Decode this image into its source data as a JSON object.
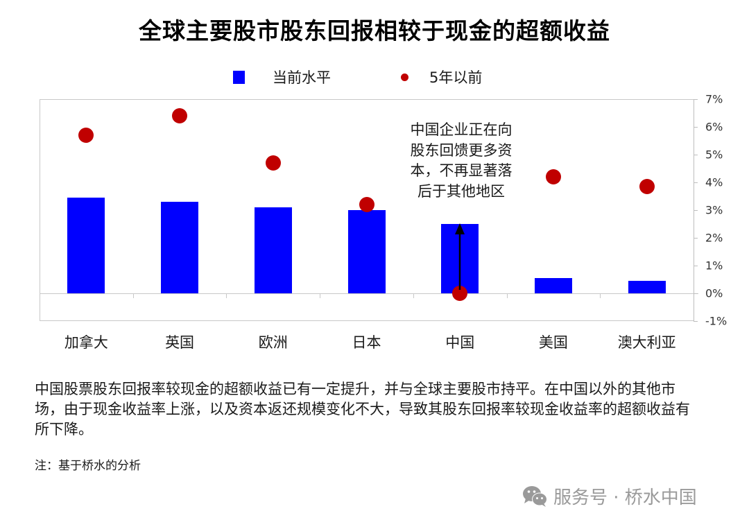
{
  "title": "全球主要股市股东回报相较于现金的超额收益",
  "legend": {
    "current": "当前水平",
    "five_years_ago": "5年以前"
  },
  "colors": {
    "bar": "#0000ff",
    "dot": "#c00000",
    "grid": "#c8c8c8"
  },
  "annotation": {
    "lines": [
      "中国企业正在向",
      "股东回馈更多资",
      "本，不再显著落",
      "后于其他地区"
    ]
  },
  "body_text": "中国股票股东回报率较现金的超额收益已有一定提升，并与全球主要股市持平。在中国以外的其他市场，由于现金收益率上涨，以及资本返还规模变化不大，导致其股东回报率较现金收益率的超额收益有所下降。",
  "note": "注：基于桥水的分析",
  "watermark": "服务号 · 桥水中国",
  "chart_data": {
    "type": "bar",
    "title": "全球主要股市股东回报相较于现金的超额收益",
    "xlabel": "",
    "ylabel": "",
    "categories": [
      "加拿大",
      "英国",
      "欧洲",
      "日本",
      "中国",
      "美国",
      "澳大利亚"
    ],
    "series": [
      {
        "name": "当前水平",
        "type": "bar",
        "color": "#0000ff",
        "values": [
          3.45,
          3.3,
          3.1,
          3.0,
          2.5,
          0.55,
          0.45
        ]
      },
      {
        "name": "5年以前",
        "type": "scatter",
        "color": "#c00000",
        "values": [
          5.7,
          6.4,
          4.7,
          3.2,
          0.0,
          4.2,
          3.85
        ]
      }
    ],
    "ylim": [
      -1,
      7
    ],
    "yticks": [
      "7%",
      "6%",
      "5%",
      "4%",
      "3%",
      "2%",
      "1%",
      "0%",
      "-1%"
    ],
    "y_axis_position": "right",
    "grid": false,
    "legend_position": "top",
    "annotations": [
      {
        "text": "中国企业正在向股东回馈更多资本，不再显著落后于其他地区",
        "arrow": {
          "category": "中国",
          "from": 0.0,
          "to": 2.5
        }
      }
    ]
  }
}
